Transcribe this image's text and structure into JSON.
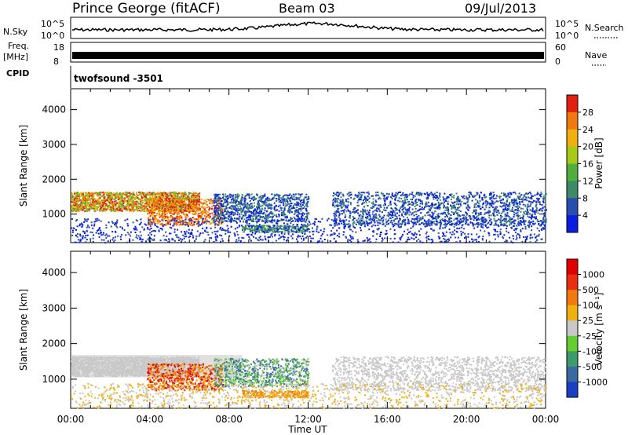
{
  "header": {
    "title": "Prince George (fitACF)",
    "beam": "Beam 03",
    "date": "09/Jul/2013"
  },
  "status_strip": {
    "left_nsky": "N.Sky",
    "left_freq": "Freq.",
    "left_freq_unit": "[MHz]",
    "left_cpid": "CPID",
    "left_ticks_nsky": [
      "10^5",
      "10^0"
    ],
    "left_ticks_freq": [
      "18",
      "8"
    ],
    "right_ticks_nsky": [
      "10^5",
      "10^0"
    ],
    "right_ticks_nave": [
      "60",
      "0"
    ],
    "right_nsearch": "N.Search",
    "right_nave": "Nave",
    "cpid_text": "twofsound -3501"
  },
  "chart_data": [
    {
      "type": "heatmap",
      "name": "power",
      "ylabel": "Slant Range [km]",
      "yticks": [
        "1000",
        "2000",
        "3000",
        "4000"
      ],
      "ylim": [
        180,
        4600
      ],
      "colorbar": {
        "label": "Power [dB]",
        "ticks": [
          "4",
          "8",
          "12",
          "16",
          "20",
          "24",
          "28"
        ],
        "colors": [
          "#0a1ee0",
          "#2a4db0",
          "#3d8a6a",
          "#4fae3c",
          "#a8c81a",
          "#f0b010",
          "#f07a10",
          "#e02010"
        ]
      }
    },
    {
      "type": "heatmap",
      "name": "velocity",
      "ylabel": "Slant Range [km]",
      "yticks": [
        "1000",
        "2000",
        "3000",
        "4000"
      ],
      "ylim": [
        180,
        4600
      ],
      "colorbar": {
        "label": "Velocity [m s⁻¹]",
        "ticks": [
          "1000",
          "500",
          "100",
          "25",
          "-25",
          "-100",
          "-500",
          "-1000"
        ],
        "colors": [
          "#1a3fc0",
          "#3a6aa0",
          "#3d9a6a",
          "#66cc33",
          "#c8c8c8",
          "#f0b010",
          "#f07a10",
          "#e83010",
          "#e00000"
        ]
      }
    }
  ],
  "x_axis": {
    "label": "Time UT",
    "ticks": [
      "00:00",
      "04:00",
      "08:00",
      "12:00",
      "16:00",
      "20:00",
      "00:00"
    ]
  }
}
